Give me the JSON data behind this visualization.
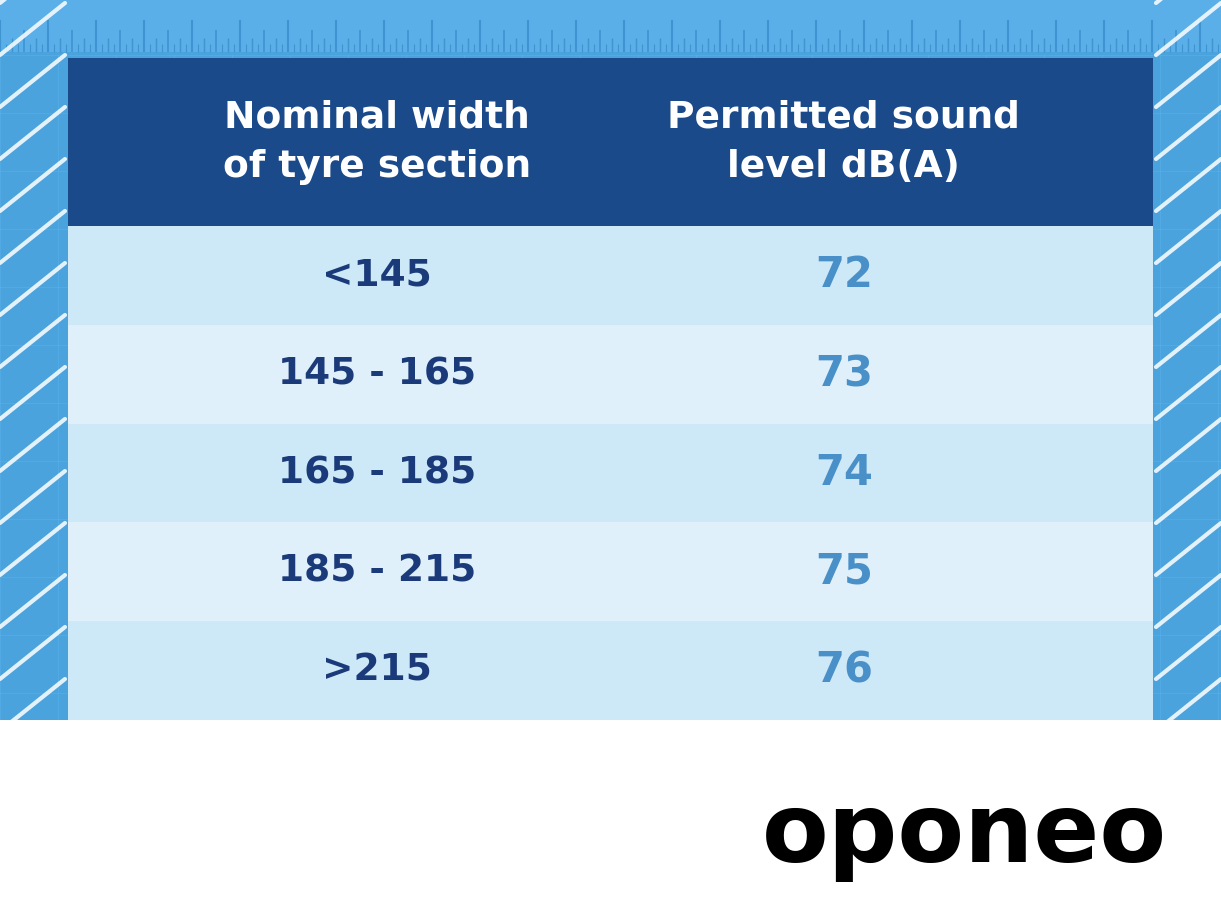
{
  "outer_bg": "#4ba3de",
  "ruler_bg": "#5aafe8",
  "ruler_tick_color": "#3d94d0",
  "header_bg_color": "#1a4a8a",
  "header_text_color": "#ffffff",
  "row_colors_light": "#cde8f7",
  "row_colors_lighter": "#dff0fa",
  "row_text_color_col1": "#1a3a7a",
  "row_text_color_col2": "#4a90c8",
  "col1_header": "Nominal width\nof tyre section",
  "col2_header": "Permitted sound\nlevel dB(A)",
  "rows": [
    [
      "<145",
      "72"
    ],
    [
      "145 - 165",
      "73"
    ],
    [
      "165 - 185",
      "74"
    ],
    [
      "185 - 215",
      "75"
    ],
    [
      ">215",
      "76"
    ]
  ],
  "oponeo_text": "oponeo",
  "oponeo_color": "#000000",
  "diagonal_line_color": "#ffffff",
  "grid_line_color": "#5fb8ee",
  "bottom_white": "#ffffff"
}
